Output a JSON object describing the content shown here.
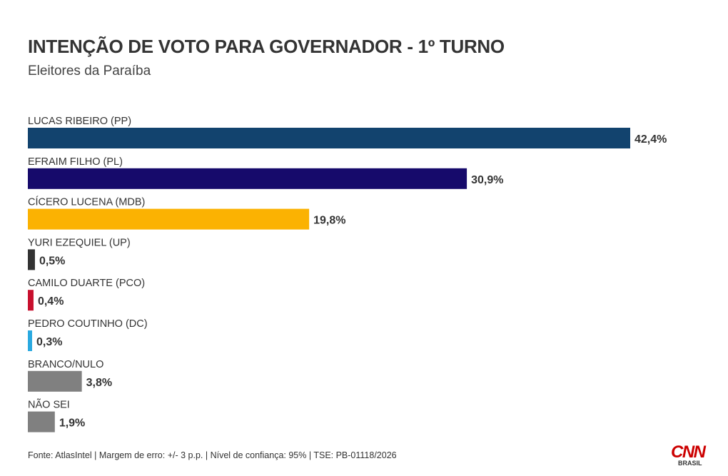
{
  "chart_data": {
    "type": "bar",
    "orientation": "horizontal",
    "title": "INTENÇÃO DE VOTO PARA GOVERNADOR - 1º TURNO",
    "subtitle": "Eleitores da Paraíba",
    "categories": [
      "LUCAS RIBEIRO (PP)",
      "EFRAIM FILHO (PL)",
      "CÍCERO LUCENA (MDB)",
      "YURI EZEQUIEL (UP)",
      "CAMILO DUARTE (PCO)",
      "PEDRO COUTINHO (DC)",
      "BRANCO/NULO",
      "NÃO SEI"
    ],
    "values": [
      42.4,
      30.9,
      19.8,
      0.5,
      0.4,
      0.3,
      3.8,
      1.9
    ],
    "value_labels": [
      "42,4%",
      "30,9%",
      "19,8%",
      "0,5%",
      "0,4%",
      "0,3%",
      "3,8%",
      "1,9%"
    ],
    "colors": [
      "#12436e",
      "#160a6b",
      "#fbb202",
      "#333333",
      "#c8102e",
      "#2aa9e0",
      "#808080",
      "#808080"
    ],
    "xlim": [
      0,
      42.4
    ],
    "grid": false,
    "legend": "none"
  },
  "footer": "Fonte: AtlasIntel | Margem de erro: +/- 3 p.p. | Nível de confiança: 95% | TSE: PB-01118/2026",
  "logo": {
    "main": "CNN",
    "sub": "BRASIL",
    "color": "#cc0000"
  }
}
